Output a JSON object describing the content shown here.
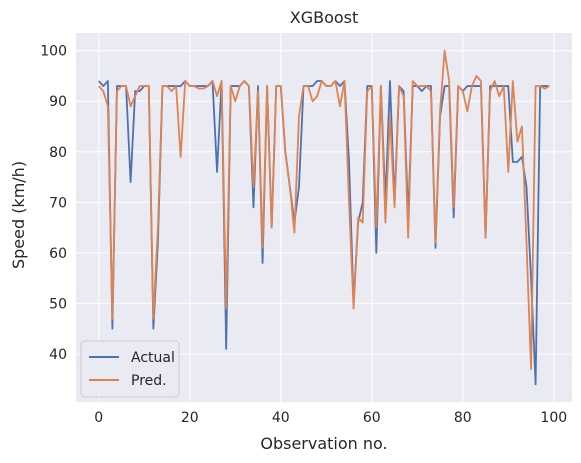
{
  "chart_data": {
    "type": "line",
    "title": "XGBoost",
    "xlabel": "Observation no.",
    "ylabel": "Speed (km/h)",
    "xlim": [
      -5,
      104
    ],
    "ylim": [
      30.5,
      103.5
    ],
    "xticks": [
      0,
      20,
      40,
      60,
      80,
      100
    ],
    "yticks": [
      40,
      50,
      60,
      70,
      80,
      90,
      100
    ],
    "grid": true,
    "legend_position": "lower-left",
    "x": [
      0,
      1,
      2,
      3,
      4,
      5,
      6,
      7,
      8,
      9,
      10,
      11,
      12,
      13,
      14,
      15,
      16,
      17,
      18,
      19,
      20,
      21,
      22,
      23,
      24,
      25,
      26,
      27,
      28,
      29,
      30,
      31,
      32,
      33,
      34,
      35,
      36,
      37,
      38,
      39,
      40,
      41,
      42,
      43,
      44,
      45,
      46,
      47,
      48,
      49,
      50,
      51,
      52,
      53,
      54,
      55,
      56,
      57,
      58,
      59,
      60,
      61,
      62,
      63,
      64,
      65,
      66,
      67,
      68,
      69,
      70,
      71,
      72,
      73,
      74,
      75,
      76,
      77,
      78,
      79,
      80,
      81,
      82,
      83,
      84,
      85,
      86,
      87,
      88,
      89,
      90,
      91,
      92,
      93,
      94,
      95,
      96,
      97,
      98,
      99
    ],
    "series": [
      {
        "name": "Actual",
        "color": "#4c72b0",
        "values": [
          94,
          93,
          94,
          45,
          93,
          93,
          93,
          74,
          92,
          92,
          93,
          93,
          45,
          62,
          93,
          93,
          93,
          93,
          93,
          94,
          93,
          93,
          93,
          93,
          93,
          94,
          76,
          94,
          41,
          93,
          93,
          93,
          94,
          93,
          69,
          93,
          58,
          93,
          65,
          93,
          93,
          80,
          73,
          66,
          73,
          93,
          93,
          93,
          94,
          94,
          93,
          93,
          94,
          93,
          94,
          78,
          50,
          66,
          70,
          93,
          93,
          60,
          93,
          70,
          94,
          70,
          93,
          92,
          67,
          93,
          93,
          92,
          93,
          93,
          61,
          87,
          93,
          93,
          67,
          93,
          92,
          93,
          93,
          93,
          93,
          63,
          93,
          93,
          93,
          93,
          93,
          78,
          78,
          79,
          73,
          55,
          34,
          93,
          93,
          93
        ]
      },
      {
        "name": "Pred.",
        "color": "#dd8452",
        "values": [
          93,
          92,
          89,
          47,
          92,
          93,
          93,
          89,
          91,
          93,
          93,
          93,
          47,
          65,
          93,
          93,
          92,
          93,
          79,
          94,
          93,
          93,
          92.5,
          92.5,
          93,
          94,
          91,
          94,
          49,
          93,
          90,
          93,
          94,
          93,
          73,
          92,
          61,
          93,
          65,
          93,
          93,
          80,
          73,
          64,
          87,
          93,
          93,
          90,
          91,
          94,
          93,
          93,
          94,
          89,
          94,
          70,
          49,
          67,
          66,
          92,
          93,
          65,
          93,
          66,
          87,
          69,
          93,
          91,
          63,
          94,
          93,
          93,
          93,
          92,
          62,
          88,
          100,
          94,
          69,
          93,
          92,
          88,
          93,
          95,
          94,
          63,
          92,
          94,
          91,
          93,
          76,
          94,
          82,
          85,
          62,
          37,
          93,
          93,
          92.5,
          93
        ]
      }
    ]
  }
}
